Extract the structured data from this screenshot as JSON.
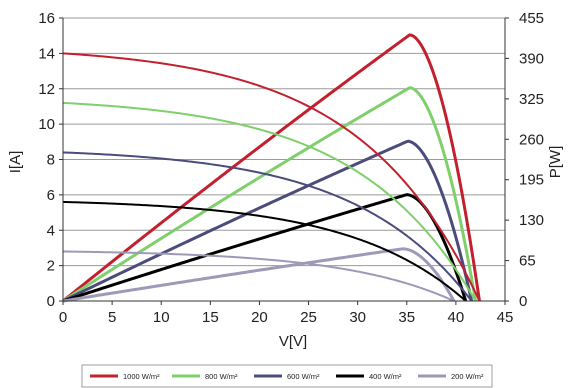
{
  "chart_data": {
    "type": "line",
    "xlabel": "V[V]",
    "ylabel": "I[A]",
    "y2label": "P[W]",
    "xlim": [
      0,
      45
    ],
    "ylim": [
      0,
      16
    ],
    "y2lim": [
      0,
      455
    ],
    "x_ticks": [
      "0",
      "5",
      "10",
      "15",
      "20",
      "25",
      "30",
      "35",
      "40",
      "45"
    ],
    "y_ticks": [
      "0",
      "2",
      "4",
      "6",
      "8",
      "10",
      "12",
      "14",
      "16"
    ],
    "y2_ticks": [
      "0",
      "65",
      "130",
      "195",
      "260",
      "325",
      "390",
      "455"
    ],
    "grid": "horizontal",
    "legend_position": "bottom",
    "series": [
      {
        "name": "1000 W/m²",
        "color": "#c3202e",
        "isc": 14.0,
        "voc": 42.4,
        "pmax_v": 35.3,
        "pmax": 428
      },
      {
        "name": "800 W/m²",
        "color": "#7fcf6a",
        "isc": 11.2,
        "voc": 42.0,
        "pmax_v": 35.3,
        "pmax": 343
      },
      {
        "name": "600 W/m²",
        "color": "#4c4c7c",
        "isc": 8.4,
        "voc": 41.6,
        "pmax_v": 35.1,
        "pmax": 257
      },
      {
        "name": "400 W/m²",
        "color": "#000000",
        "isc": 5.6,
        "voc": 41.0,
        "pmax_v": 35.0,
        "pmax": 171
      },
      {
        "name": "200 W/m²",
        "color": "#9d9ab8",
        "isc": 2.8,
        "voc": 39.8,
        "pmax_v": 34.6,
        "pmax": 84
      }
    ]
  }
}
